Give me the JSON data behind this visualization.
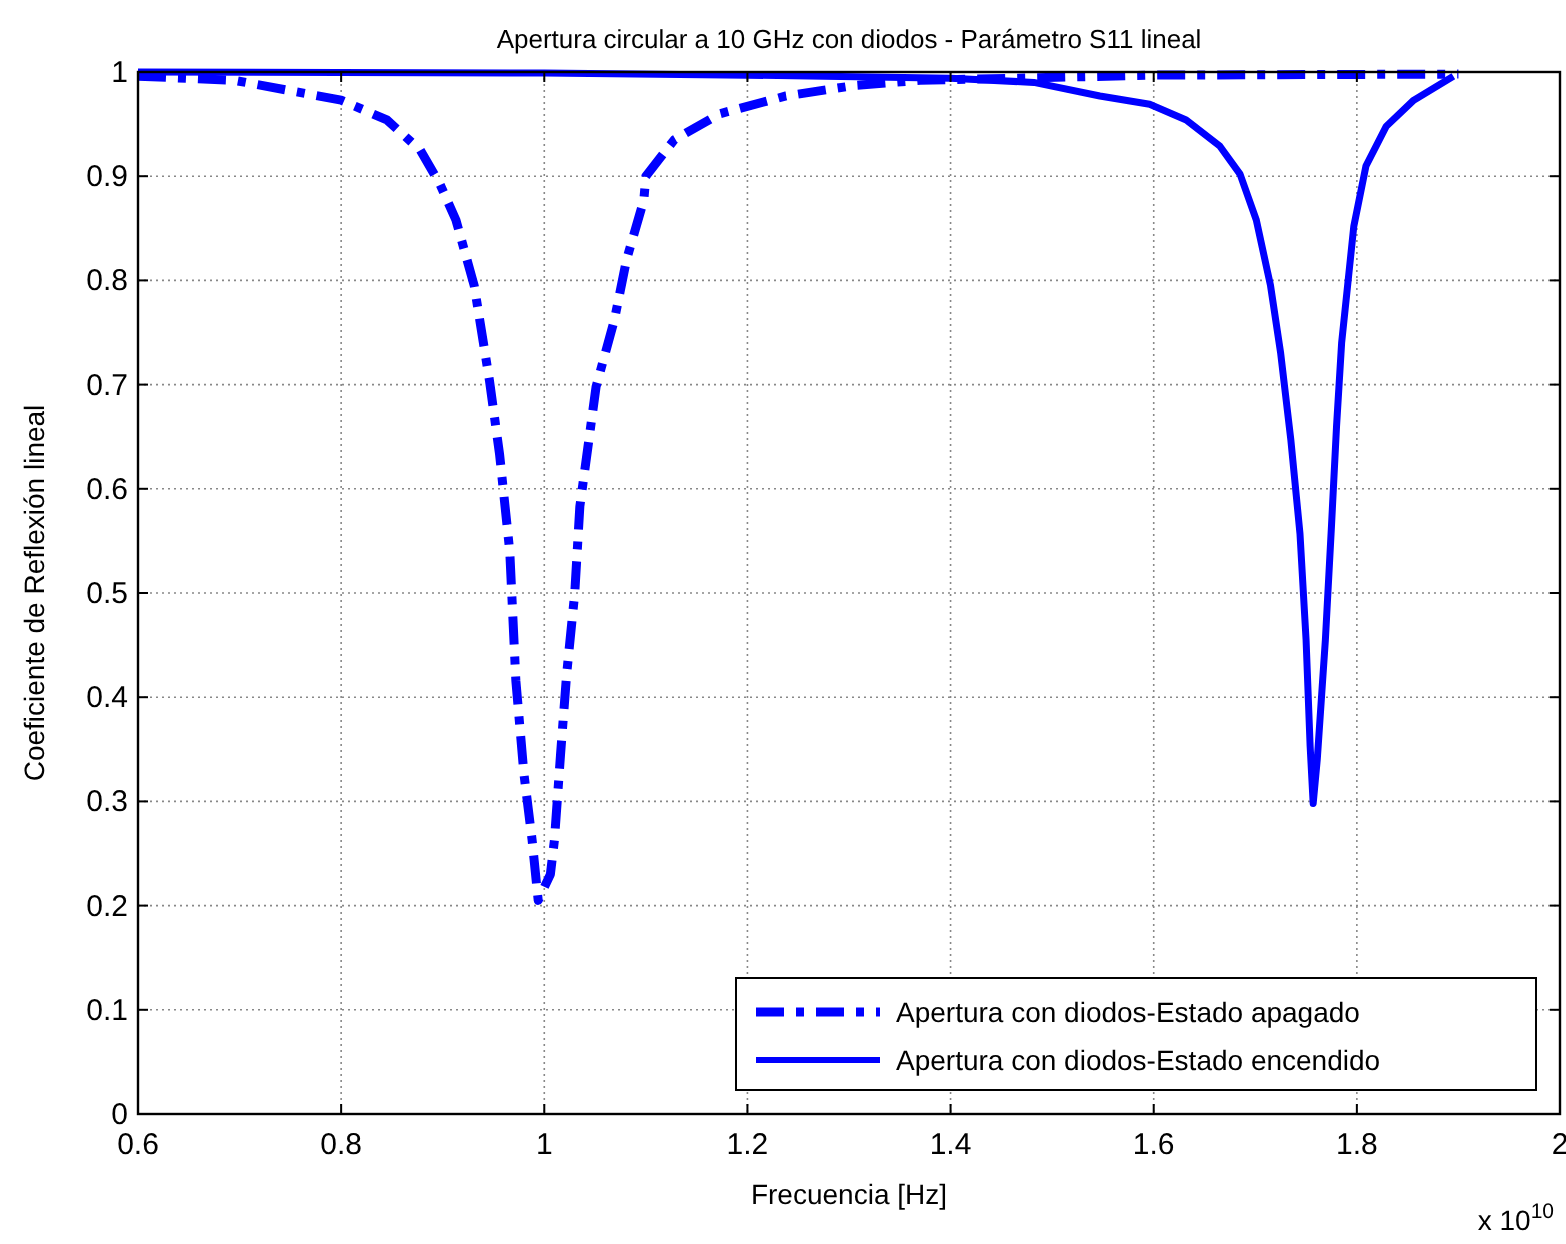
{
  "chart_data": {
    "type": "line",
    "title": "Apertura circular a 10 GHz con diodos - Parámetro S11 lineal",
    "xlabel": "Frecuencia [Hz]",
    "ylabel": "Coeficiente de Reflexión lineal",
    "annotations": [
      "x 10$^{10}$"
    ],
    "xlim": [
      0.6,
      2
    ],
    "xticks": [
      0.6,
      0.8,
      1,
      1.2,
      1.4,
      1.6,
      1.8,
      2
    ],
    "ylim": [
      0,
      1
    ],
    "yticks": [
      0,
      0.1,
      0.2,
      0.3,
      0.4,
      0.5,
      0.6,
      0.7,
      0.8,
      0.9,
      1
    ],
    "grid": true,
    "legend": "bottom right",
    "series": [
      {
        "name": "Apertura con diodos-Estado apagado",
        "color": "#0000ff",
        "line_style": "dashed",
        "x": [
          0.6,
          0.695,
          0.8,
          0.845,
          0.878,
          0.897,
          0.913,
          0.931,
          0.946,
          0.956,
          0.966,
          0.972,
          0.98,
          0.988,
          0.994,
          1.006,
          1.01,
          1.016,
          1.022,
          1.03,
          1.035,
          1.051,
          1.069,
          1.081,
          1.098,
          1.1,
          1.128,
          1.173,
          1.238,
          1.305,
          1.37,
          1.6,
          1.9
        ],
        "values": [
          0.996,
          0.992,
          0.973,
          0.954,
          0.925,
          0.893,
          0.858,
          0.795,
          0.704,
          0.633,
          0.54,
          0.416,
          0.326,
          0.263,
          0.205,
          0.23,
          0.263,
          0.345,
          0.422,
          0.5,
          0.583,
          0.698,
          0.762,
          0.82,
          0.877,
          0.9,
          0.935,
          0.96,
          0.977,
          0.987,
          0.992,
          0.997,
          0.998
        ]
      },
      {
        "name": "Apertura con diodos-Estado encendido",
        "color": "#0000ff",
        "line_style": "solid",
        "x": [
          0.6,
          1,
          1.2,
          1.4,
          1.482,
          1.547,
          1.596,
          1.632,
          1.665,
          1.685,
          1.701,
          1.715,
          1.725,
          1.735,
          1.744,
          1.75,
          1.754,
          1.757,
          1.761,
          1.769,
          1.775,
          1.78,
          1.785,
          1.797,
          1.809,
          1.829,
          1.856,
          1.895
        ],
        "values": [
          1,
          0.999,
          0.997,
          0.994,
          0.99,
          0.977,
          0.969,
          0.954,
          0.929,
          0.902,
          0.858,
          0.795,
          0.73,
          0.647,
          0.557,
          0.455,
          0.353,
          0.298,
          0.34,
          0.455,
          0.564,
          0.66,
          0.74,
          0.852,
          0.91,
          0.948,
          0.973,
          0.996
        ]
      }
    ]
  }
}
